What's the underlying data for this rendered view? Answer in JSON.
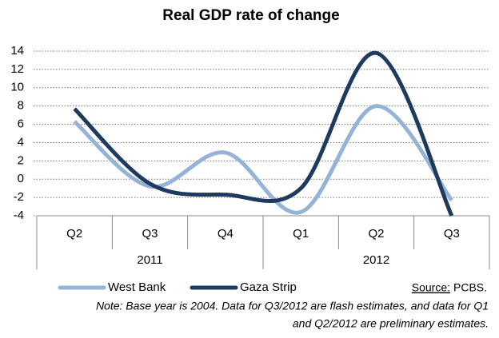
{
  "chart_data": {
    "type": "line",
    "title": "Real GDP rate of change",
    "categories": [
      "Q2",
      "Q3",
      "Q4",
      "Q1",
      "Q2",
      "Q3"
    ],
    "groups": [
      {
        "label": "2011",
        "span": 3
      },
      {
        "label": "2012",
        "span": 3
      }
    ],
    "series": [
      {
        "name": "West Bank",
        "color": "#95b3d7",
        "values": [
          6.3,
          -0.8,
          2.9,
          -3.6,
          8.0,
          -2.3
        ]
      },
      {
        "name": "Gaza Strip",
        "color": "#1f3a5f",
        "values": [
          7.7,
          -0.5,
          -1.7,
          -1.0,
          13.8,
          -4.0
        ]
      }
    ],
    "ylim": [
      -4,
      14
    ],
    "yticks": [
      14,
      12,
      10,
      8,
      6,
      4,
      2,
      0,
      -2,
      -4
    ],
    "grid": true,
    "smooth": true,
    "source_label": "Source:",
    "source": "PCBS.",
    "note": [
      "Note: Base year is 2004. Data for Q3/2012 are flash estimates, and data for Q1",
      "and Q2/2012  are preliminary estimates."
    ]
  }
}
